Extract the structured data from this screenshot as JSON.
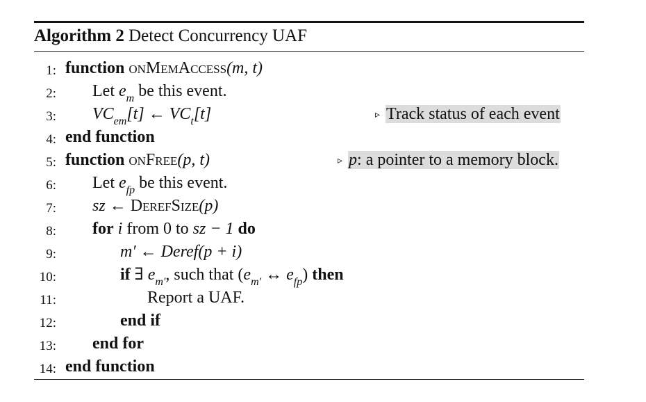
{
  "caption": {
    "label": "Algorithm 2",
    "title": "Detect Concurrency UAF"
  },
  "lines": [
    {
      "num": "1:"
    },
    {
      "num": "2:"
    },
    {
      "num": "3:"
    },
    {
      "num": "4:"
    },
    {
      "num": "5:"
    },
    {
      "num": "6:"
    },
    {
      "num": "7:"
    },
    {
      "num": "8:"
    },
    {
      "num": "9:"
    },
    {
      "num": "10:"
    },
    {
      "num": "11:"
    },
    {
      "num": "12:"
    },
    {
      "num": "13:"
    },
    {
      "num": "14:"
    }
  ],
  "tokens": {
    "function_kw": "function",
    "end_function_kw": "end function",
    "on_mem_access": "onMemAccess",
    "on_free": "onFree",
    "args_mt": "(m, t)",
    "args_pt": "(p, t)",
    "let": "Let",
    "be_event": "be this event.",
    "e_sym": "e",
    "m_sub": "m",
    "fp_sub": "fp",
    "vc_lhs": "VC",
    "t_index": "[t]",
    "arrow": "←",
    "vc_rhs": "VC",
    "t_sub": "t",
    "sz": "sz",
    "deref_size": "DerefSize",
    "arg_p": "(p)",
    "for_kw": "for",
    "for_var": "i",
    "for_from": "from 0 to",
    "for_end": "sz − 1",
    "do_kw": "do",
    "mprime": "m′",
    "deref_call": "Deref(p + i)",
    "if_kw": "if",
    "exists": "∃",
    "e_mprime_sub": "m′",
    "such_that": ", such that (",
    "harr": "↔",
    "close_paren": ")",
    "then_kw": "then",
    "report": "Report a UAF.",
    "end_if_kw": "end if",
    "end_for_kw": "end for"
  },
  "comments": {
    "line3": "Track status of each event",
    "line5_var": "p",
    "line5_rest": ": a pointer to a memory block."
  }
}
